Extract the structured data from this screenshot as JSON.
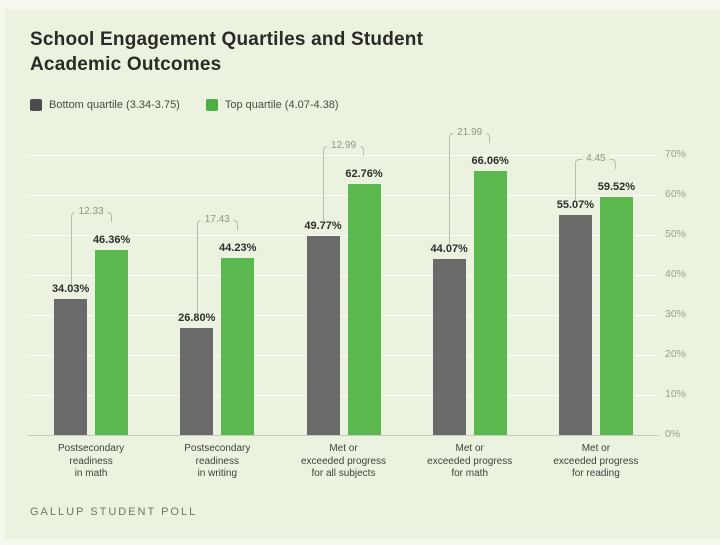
{
  "page": {
    "title_line1": "School Engagement Quartiles and Student",
    "title_line2": "Academic Outcomes",
    "footer": "GALLUP STUDENT POLL"
  },
  "legend": [
    {
      "label": "Bottom quartile (3.34-3.75)",
      "color": "#4b4b4b"
    },
    {
      "label": "Top quartile (4.07-4.38)",
      "color": "#4caf42"
    }
  ],
  "colors": {
    "panel_background": "#ecf2e0",
    "page_background": "#f5f8ec",
    "bottom_quartile_bar": "#6a6a6a",
    "top_quartile_bar": "#5bb84f",
    "bracket_line": "#b7bcae",
    "bracket_text": "#8e9486",
    "axis_text": "#999f90",
    "value_label_text": "#2d2f2a"
  },
  "chart_data": {
    "type": "bar",
    "title": "School Engagement Quartiles and Student Academic Outcomes",
    "xlabel": "",
    "ylabel": "",
    "ylim": [
      0,
      70
    ],
    "grid": true,
    "legend_position": "top-left",
    "yticks": [
      "0%",
      "10%",
      "20%",
      "30%",
      "40%",
      "50%",
      "60%",
      "70%"
    ],
    "ytick_values": [
      0,
      10,
      20,
      30,
      40,
      50,
      60,
      70
    ],
    "categories": [
      [
        "Postsecondary",
        "readiness",
        "in math"
      ],
      [
        "Postsecondary",
        "readiness",
        "in writing"
      ],
      [
        "Met or",
        "exceeded progress",
        "for all subjects"
      ],
      [
        "Met or",
        "exceeded progress",
        "for math"
      ],
      [
        "Met or",
        "exceeded progress",
        "for reading"
      ]
    ],
    "series": [
      {
        "name": "Bottom quartile (3.34-3.75)",
        "color": "#6a6a6a",
        "values": [
          34.03,
          26.8,
          49.77,
          44.07,
          55.07
        ],
        "labels": [
          "34.03%",
          "26.80%",
          "49.77%",
          "44.07%",
          "55.07%"
        ]
      },
      {
        "name": "Top quartile (4.07-4.38)",
        "color": "#5bb84f",
        "values": [
          46.36,
          44.23,
          62.76,
          66.06,
          59.52
        ],
        "labels": [
          "46.36%",
          "44.23%",
          "62.76%",
          "66.06%",
          "59.52%"
        ]
      }
    ],
    "difference_annotations": [
      "12.33",
      "17.43",
      "12.99",
      "21.99",
      "4.45"
    ],
    "source_label": "GALLUP STUDENT POLL"
  }
}
